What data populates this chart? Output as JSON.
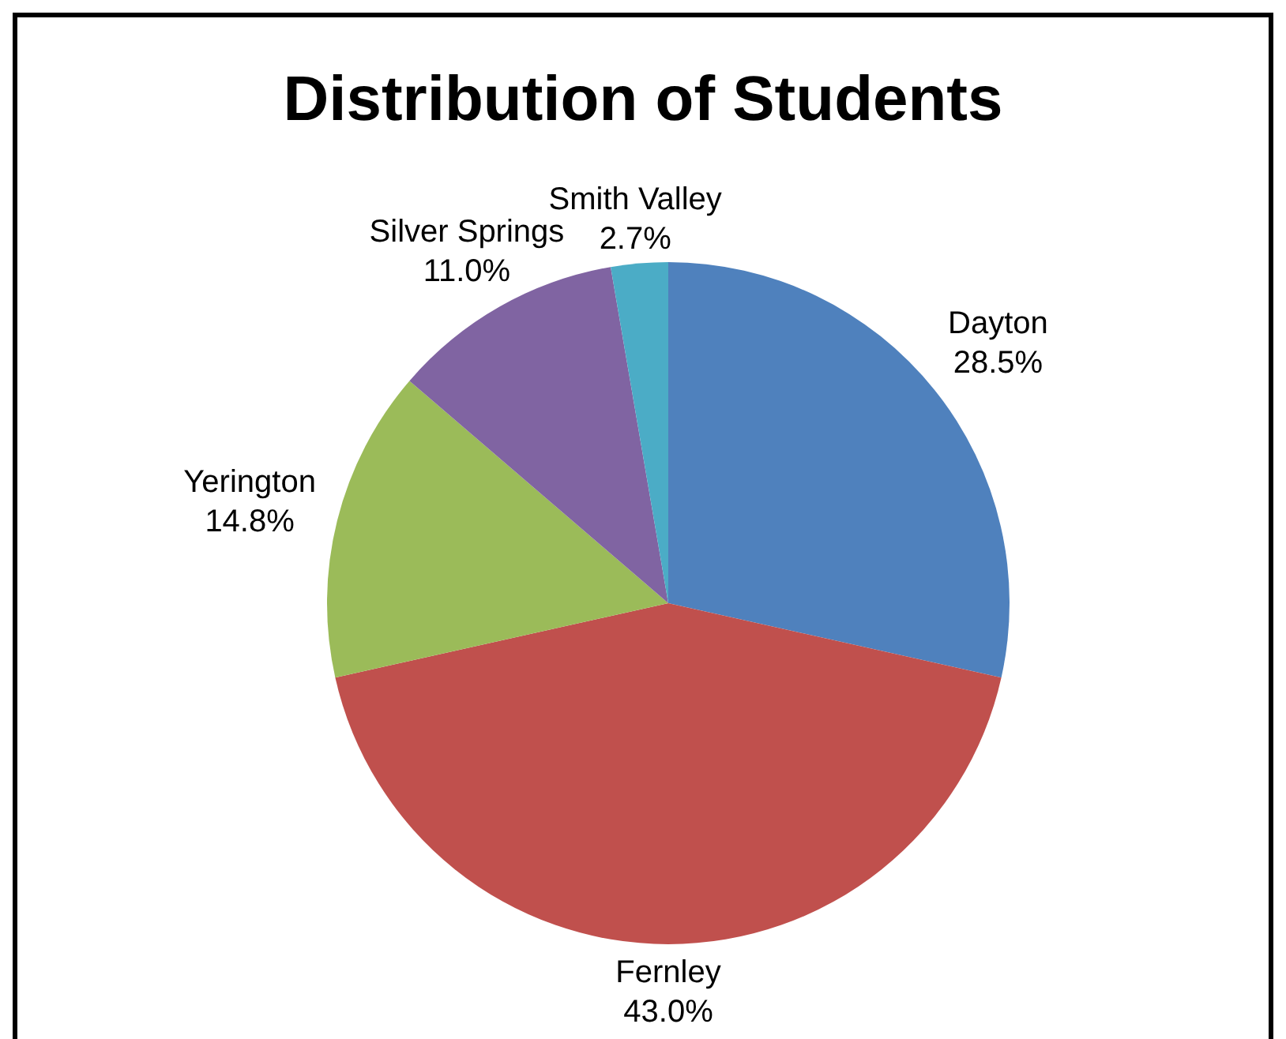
{
  "chart_data": {
    "type": "pie",
    "title": "Distribution of Students",
    "categories": [
      "Dayton",
      "Fernley",
      "Yerington",
      "Silver Springs",
      "Smith Valley"
    ],
    "values": [
      28.5,
      43.0,
      14.8,
      11.0,
      2.7
    ],
    "value_labels": [
      "28.5%",
      "43.0%",
      "14.8%",
      "11.0%",
      "2.7%"
    ],
    "colors": [
      "#4f81bd",
      "#c0504d",
      "#9bbb59",
      "#8064a2",
      "#4bacc6"
    ],
    "legend": false
  }
}
